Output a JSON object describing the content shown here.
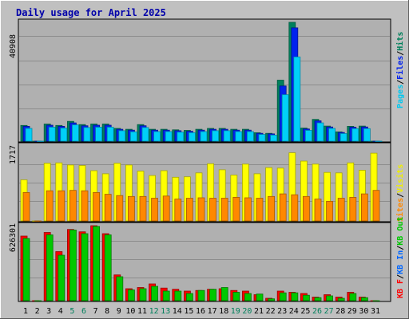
{
  "chart_data": {
    "type": "bar",
    "title": "Daily usage for April 2025",
    "grid": true,
    "categories": [
      "1",
      "2",
      "3",
      "4",
      "5",
      "6",
      "7",
      "8",
      "9",
      "10",
      "11",
      "12",
      "13",
      "14",
      "15",
      "16",
      "17",
      "18",
      "19",
      "20",
      "21",
      "22",
      "23",
      "24",
      "25",
      "26",
      "27",
      "28",
      "29",
      "30",
      "31"
    ],
    "weekend_categories": [
      "5",
      "6",
      "12",
      "13",
      "19",
      "20",
      "26",
      "27"
    ],
    "panels": [
      {
        "id": "top",
        "ymax_label": "40908",
        "ylim": [
          0,
          40908
        ],
        "legend": [
          "Pages",
          "Files",
          "Hits"
        ],
        "colors": {
          "Hits": "#00805c",
          "Files": "#0022ee",
          "Pages": "#00d0f8"
        },
        "series": [
          {
            "name": "Hits",
            "values": [
              5400,
              0,
              5900,
              5400,
              6800,
              5700,
              5900,
              5900,
              4400,
              4100,
              5700,
              4100,
              4100,
              3900,
              3700,
              4100,
              4400,
              4400,
              4100,
              4100,
              2900,
              2700,
              21000,
              40900,
              4500,
              7500,
              5200,
              3200,
              5100,
              5200,
              0
            ]
          },
          {
            "name": "Files",
            "values": [
              5100,
              0,
              5500,
              5100,
              6300,
              5300,
              5500,
              5500,
              4100,
              3800,
              5300,
              3800,
              3800,
              3600,
              3400,
              3800,
              4100,
              4100,
              3800,
              3800,
              2700,
              2500,
              19000,
              39000,
              4200,
              7000,
              4900,
              3000,
              4800,
              4900,
              0
            ]
          },
          {
            "name": "Pages",
            "values": [
              4400,
              0,
              4800,
              4500,
              5600,
              4700,
              4800,
              4800,
              3600,
              3200,
              4700,
              3300,
              3300,
              3100,
              2900,
              3300,
              3600,
              3600,
              3300,
              3300,
              2300,
              2100,
              16000,
              29000,
              3700,
              6300,
              4400,
              2600,
              4300,
              4300,
              0
            ]
          }
        ]
      },
      {
        "id": "middle",
        "ymax_label": "1717",
        "ylim": [
          0,
          1717
        ],
        "legend": [
          "Visits",
          "Sites"
        ],
        "colors": {
          "Visits": "#ffff00",
          "Sites": "#ff8800"
        },
        "series": [
          {
            "name": "Visits",
            "values": [
              940,
              0,
              1320,
              1330,
              1280,
              1270,
              1150,
              1080,
              1320,
              1280,
              1140,
              1040,
              1150,
              1000,
              1010,
              1100,
              1310,
              1170,
              1050,
              1300,
              1080,
              1220,
              1210,
              1560,
              1370,
              1300,
              1110,
              1100,
              1330,
              1160,
              1550
            ]
          },
          {
            "name": "Sites",
            "values": [
              650,
              0,
              690,
              690,
              700,
              690,
              650,
              610,
              580,
              560,
              560,
              520,
              570,
              500,
              520,
              530,
              520,
              520,
              540,
              530,
              520,
              560,
              620,
              600,
              560,
              500,
              450,
              520,
              540,
              620,
              700
            ]
          }
        ]
      },
      {
        "id": "bottom",
        "ymax_label": "626301",
        "ylim": [
          0,
          626301
        ],
        "legend": [
          "KB F",
          "KB In",
          "KB Out"
        ],
        "colors": {
          "KB F": "#ff0000",
          "KB In": "#0066ff",
          "KB Out": "#00c800"
        },
        "series": [
          {
            "name": "KB F",
            "values": [
              540000,
              0,
              570000,
              410000,
              595000,
              575000,
              626301,
              560000,
              215000,
              100000,
              110000,
              140000,
              105000,
              95000,
              80000,
              85000,
              95000,
              100000,
              85000,
              80000,
              50000,
              20000,
              80000,
              70000,
              60000,
              30000,
              50000,
              30000,
              70000,
              30000,
              0
            ]
          },
          {
            "name": "KB Out",
            "values": [
              520000,
              0,
              550000,
              380000,
              590000,
              560000,
              620000,
              550000,
              200000,
              90000,
              100000,
              120000,
              80000,
              80000,
              60000,
              85000,
              95000,
              110000,
              70000,
              60000,
              55000,
              15000,
              65000,
              65000,
              45000,
              25000,
              40000,
              20000,
              60000,
              25000,
              0
            ]
          }
        ]
      }
    ]
  }
}
